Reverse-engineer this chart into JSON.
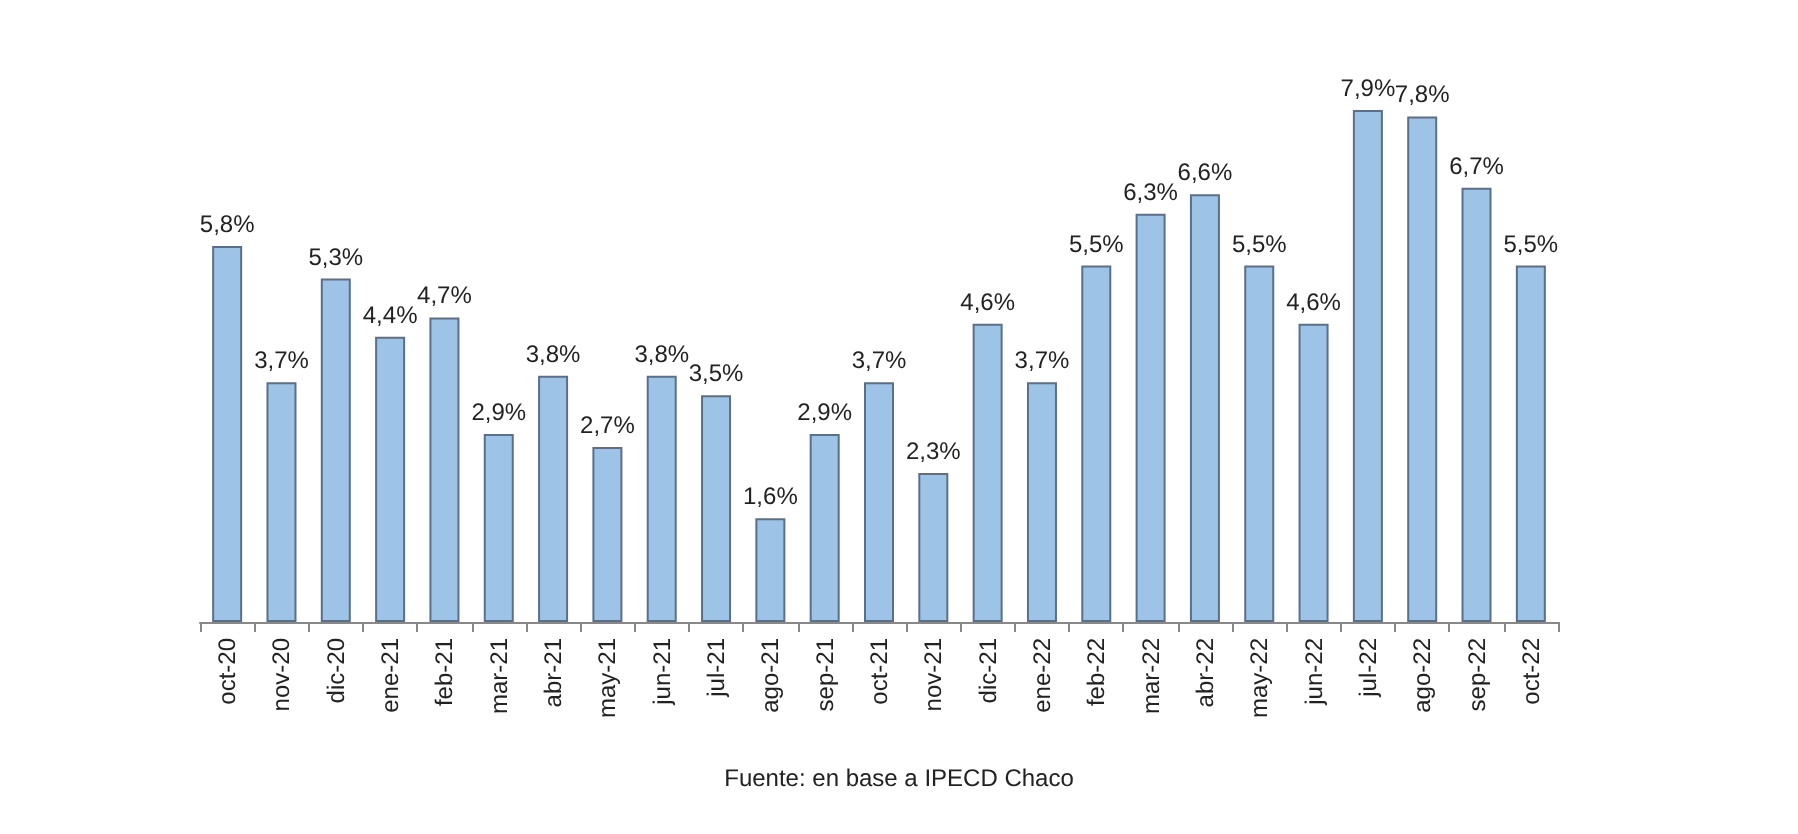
{
  "chart_data": {
    "type": "bar",
    "categories": [
      "oct-20",
      "nov-20",
      "dic-20",
      "ene-21",
      "feb-21",
      "mar-21",
      "abr-21",
      "may-21",
      "jun-21",
      "jul-21",
      "ago-21",
      "sep-21",
      "oct-21",
      "nov-21",
      "dic-21",
      "ene-22",
      "feb-22",
      "mar-22",
      "abr-22",
      "may-22",
      "jun-22",
      "jul-22",
      "ago-22",
      "sep-22",
      "oct-22"
    ],
    "values": [
      5.8,
      3.7,
      5.3,
      4.4,
      4.7,
      2.9,
      3.8,
      2.7,
      3.8,
      3.5,
      1.6,
      2.9,
      3.7,
      2.3,
      4.6,
      3.7,
      5.5,
      6.3,
      6.6,
      5.5,
      4.6,
      7.9,
      7.8,
      6.7,
      5.5
    ],
    "value_labels": [
      "5,8%",
      "3,7%",
      "5,3%",
      "4,4%",
      "4,7%",
      "2,9%",
      "3,8%",
      "2,7%",
      "3,8%",
      "3,5%",
      "1,6%",
      "2,9%",
      "3,7%",
      "2,3%",
      "4,6%",
      "3,7%",
      "5,5%",
      "6,3%",
      "6,6%",
      "5,5%",
      "4,6%",
      "7,9%",
      "7,8%",
      "6,7%",
      "5,5%"
    ],
    "color": "#9dc3e6",
    "annotations": [
      "Fuente: en base a IPECD Chaco"
    ]
  }
}
